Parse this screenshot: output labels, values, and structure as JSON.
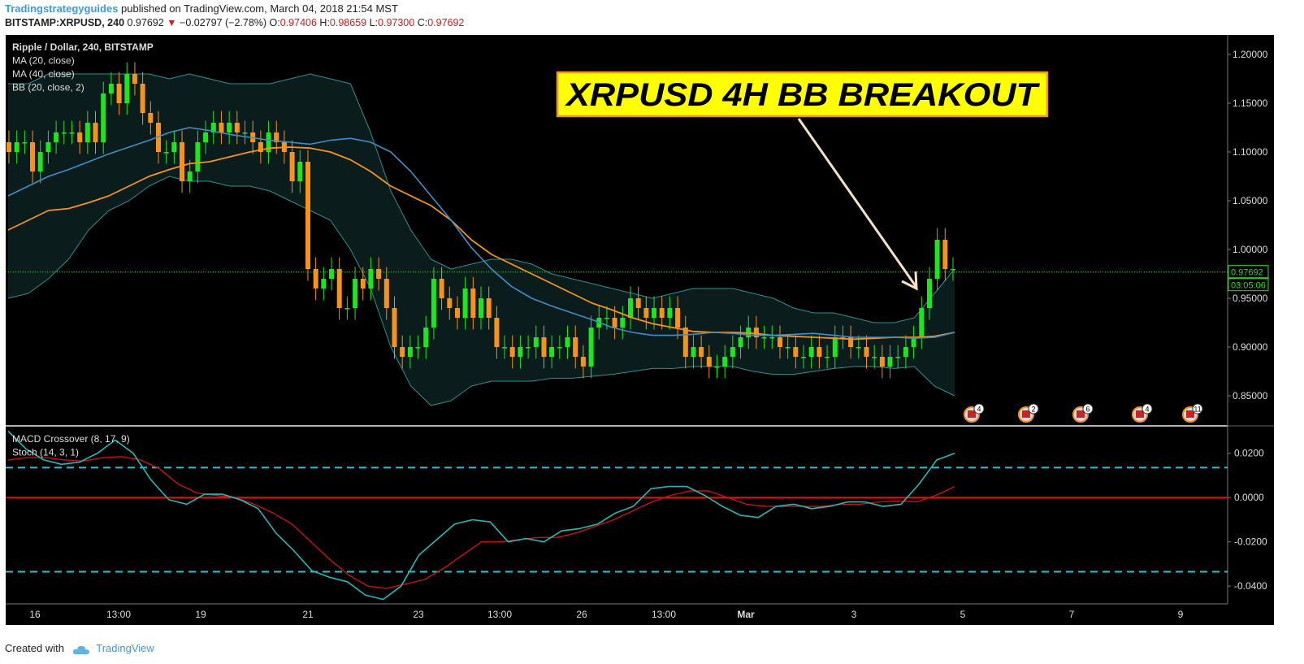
{
  "header": {
    "author": "Tradingstrategyguides",
    "published_text": " published on TradingView.com, March 04, 2018 21:54 MST",
    "symbol": "BITSTAMP:XRPUSD, 240",
    "last": "0.97692",
    "down_arrow": "▼",
    "change": "−0.02797 (−2.78%)",
    "o_label": "O:",
    "o_value": "0.97406",
    "h_label": "H:",
    "h_value": "0.98659",
    "l_label": "L:",
    "l_value": "0.97300",
    "c_label": "C:",
    "c_value": "0.97692"
  },
  "legend_main": [
    "Ripple / Dollar, 240, BITSTAMP",
    "MA (20, close)",
    "MA (40, close)",
    "BB (20, close, 2)"
  ],
  "legend_sub": [
    "MACD Crossover (8, 17, 9)",
    "Stoch (14, 3, 1)"
  ],
  "annotation": "XRPUSD 4H BB BREAKOUT",
  "price_labels": {
    "last": "0.97692",
    "countdown": "03:05:06"
  },
  "event_badges": [
    "4",
    "2",
    "6",
    "4",
    "11"
  ],
  "footer": {
    "created_with": "Created with",
    "brand": "TradingView"
  },
  "colors": {
    "background": "#000000",
    "bull": "#1fe51f",
    "bear": "#f7931a",
    "ma20": "#3d8fc7",
    "ma40": "#f7931a",
    "bands": "#2f8f90",
    "macd": "#26b8b8",
    "signal": "#cc1111",
    "zero_line": "#dd1111",
    "stoch_levels": "#26c6da",
    "price_line": "#1fe51f",
    "annotation_bg": "#ffff00",
    "annotation_border": "#f7931a"
  },
  "chart_data": [
    {
      "type": "candlestick",
      "title": "Ripple / Dollar, 240, BITSTAMP",
      "ylim": [
        0.82,
        1.22
      ],
      "y_ticks": [
        "1.20000",
        "1.15000",
        "1.10000",
        "1.05000",
        "1.00000",
        "0.95000",
        "0.90000",
        "0.85000"
      ],
      "x_tick_labels": [
        "16",
        "13:00",
        "19",
        "21",
        "23",
        "13:00",
        "26",
        "13:00",
        "Mar",
        "3",
        "5",
        "7",
        "9"
      ],
      "close_sequence": [
        1.1,
        1.11,
        1.11,
        1.08,
        1.1,
        1.11,
        1.12,
        1.12,
        1.12,
        1.11,
        1.13,
        1.11,
        1.16,
        1.17,
        1.15,
        1.18,
        1.17,
        1.14,
        1.13,
        1.1,
        1.1,
        1.11,
        1.07,
        1.08,
        1.11,
        1.12,
        1.13,
        1.12,
        1.13,
        1.12,
        1.12,
        1.11,
        1.1,
        1.12,
        1.11,
        1.1,
        1.07,
        1.09,
        0.98,
        0.96,
        0.97,
        0.98,
        0.94,
        0.94,
        0.97,
        0.96,
        0.98,
        0.97,
        0.94,
        0.9,
        0.89,
        0.9,
        0.9,
        0.92,
        0.97,
        0.95,
        0.94,
        0.93,
        0.96,
        0.93,
        0.95,
        0.93,
        0.9,
        0.9,
        0.89,
        0.9,
        0.9,
        0.91,
        0.89,
        0.9,
        0.9,
        0.91,
        0.89,
        0.88,
        0.92,
        0.93,
        0.93,
        0.92,
        0.93,
        0.95,
        0.94,
        0.93,
        0.94,
        0.93,
        0.94,
        0.92,
        0.89,
        0.9,
        0.89,
        0.88,
        0.88,
        0.89,
        0.9,
        0.91,
        0.92,
        0.91,
        0.91,
        0.91,
        0.9,
        0.9,
        0.89,
        0.89,
        0.9,
        0.89,
        0.89,
        0.91,
        0.91,
        0.9,
        0.9,
        0.89,
        0.89,
        0.88,
        0.89,
        0.89,
        0.9,
        0.91,
        0.94,
        0.97,
        1.01,
        0.98,
        0.98
      ],
      "series": [
        {
          "name": "MA (20, close)",
          "values": [
            1.055,
            1.065,
            1.075,
            1.082,
            1.09,
            1.098,
            1.105,
            1.112,
            1.12,
            1.125,
            1.122,
            1.118,
            1.115,
            1.112,
            1.11,
            1.108,
            1.112,
            1.114,
            1.11,
            1.1,
            1.08,
            1.055,
            1.03,
            1.002,
            0.98,
            0.962,
            0.95,
            0.942,
            0.935,
            0.928,
            0.92,
            0.915,
            0.912,
            0.912,
            0.913,
            0.915,
            0.914,
            0.912,
            0.912,
            0.913,
            0.914,
            0.912,
            0.91,
            0.91,
            0.91,
            0.909,
            0.91,
            0.915
          ]
        },
        {
          "name": "MA (40, close)",
          "values": [
            1.02,
            1.03,
            1.04,
            1.042,
            1.048,
            1.055,
            1.065,
            1.075,
            1.082,
            1.088,
            1.09,
            1.095,
            1.1,
            1.104,
            1.105,
            1.104,
            1.1,
            1.092,
            1.08,
            1.065,
            1.055,
            1.045,
            1.03,
            1.01,
            0.995,
            0.985,
            0.975,
            0.965,
            0.955,
            0.945,
            0.938,
            0.93,
            0.924,
            0.92,
            0.916,
            0.915,
            0.915,
            0.914,
            0.912,
            0.911,
            0.91,
            0.909,
            0.908,
            0.909,
            0.91,
            0.91,
            0.911,
            0.915
          ]
        },
        {
          "name": "BB upper",
          "values": [
            1.17,
            1.17,
            1.18,
            1.18,
            1.18,
            1.18,
            1.18,
            1.18,
            1.175,
            1.18,
            1.175,
            1.17,
            1.17,
            1.17,
            1.175,
            1.18,
            1.175,
            1.17,
            1.12,
            1.06,
            1.02,
            0.99,
            0.98,
            0.985,
            0.99,
            0.99,
            0.985,
            0.975,
            0.97,
            0.965,
            0.96,
            0.955,
            0.95,
            0.955,
            0.96,
            0.96,
            0.96,
            0.955,
            0.95,
            0.94,
            0.935,
            0.935,
            0.93,
            0.925,
            0.925,
            0.93,
            0.955,
            0.98
          ]
        },
        {
          "name": "BB lower",
          "values": [
            0.95,
            0.955,
            0.97,
            0.99,
            1.02,
            1.04,
            1.05,
            1.065,
            1.075,
            1.07,
            1.07,
            1.065,
            1.065,
            1.06,
            1.05,
            1.04,
            1.03,
            1.0,
            0.96,
            0.9,
            0.86,
            0.84,
            0.845,
            0.86,
            0.865,
            0.865,
            0.865,
            0.868,
            0.868,
            0.87,
            0.872,
            0.875,
            0.878,
            0.878,
            0.88,
            0.88,
            0.88,
            0.875,
            0.872,
            0.872,
            0.875,
            0.878,
            0.88,
            0.88,
            0.878,
            0.88,
            0.86,
            0.85
          ]
        }
      ]
    },
    {
      "type": "line",
      "title": "MACD Crossover (8, 17, 9)",
      "ylim": [
        -0.048,
        0.032
      ],
      "y_ticks": [
        "0.0200",
        "0.0000",
        "-0.0200",
        "-0.0400"
      ],
      "levels": [
        0.0135,
        0.0,
        -0.0335
      ],
      "series": [
        {
          "name": "MACD",
          "values": [
            0.03,
            0.022,
            0.017,
            0.015,
            0.016,
            0.02,
            0.026,
            0.02,
            0.008,
            -0.001,
            -0.003,
            0.0015,
            0.0015,
            -0.001,
            -0.005,
            -0.016,
            -0.024,
            -0.033,
            -0.036,
            -0.038,
            -0.044,
            -0.046,
            -0.04,
            -0.026,
            -0.019,
            -0.012,
            -0.01,
            -0.011,
            -0.02,
            -0.0185,
            -0.02,
            -0.015,
            -0.014,
            -0.012,
            -0.007,
            -0.004,
            0.004,
            0.005,
            0.005,
            0.001,
            -0.004,
            -0.008,
            -0.009,
            -0.004,
            -0.003,
            -0.005,
            -0.004,
            -0.002,
            -0.002,
            -0.004,
            -0.003,
            0.006,
            0.017,
            0.02
          ]
        },
        {
          "name": "Signal",
          "values": [
            0.017,
            0.018,
            0.018,
            0.017,
            0.0165,
            0.018,
            0.0185,
            0.017,
            0.013,
            0.006,
            0.002,
            0.001,
            0.0,
            -0.003,
            -0.007,
            -0.012,
            -0.02,
            -0.028,
            -0.035,
            -0.04,
            -0.041,
            -0.039,
            -0.037,
            -0.032,
            -0.026,
            -0.02,
            -0.02,
            -0.019,
            -0.018,
            -0.018,
            -0.016,
            -0.013,
            -0.01,
            -0.006,
            -0.002,
            0.001,
            0.003,
            0.003,
            0.0,
            -0.003,
            -0.004,
            -0.004,
            -0.004,
            -0.004,
            -0.003,
            -0.003,
            -0.002,
            -0.0015,
            -0.002,
            0.001,
            0.005
          ]
        }
      ]
    }
  ]
}
